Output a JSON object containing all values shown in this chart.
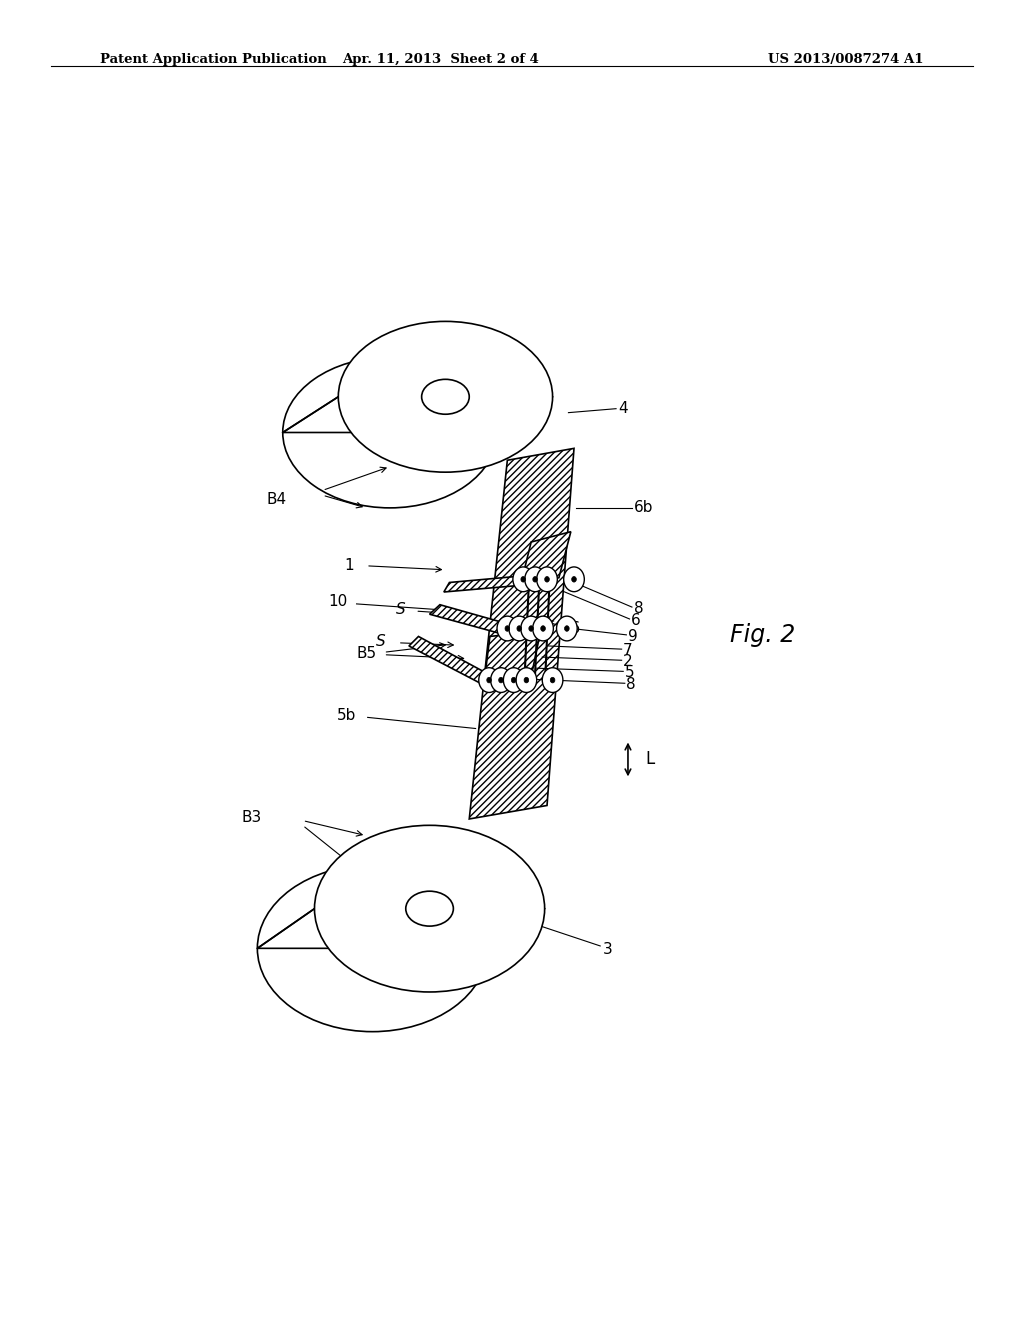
{
  "bg_color": "#ffffff",
  "line_color": "#000000",
  "header_left": "Patent Application Publication",
  "header_mid": "Apr. 11, 2013  Sheet 2 of 4",
  "header_right": "US 2013/0087274 A1",
  "fig_label": "Fig. 2"
}
